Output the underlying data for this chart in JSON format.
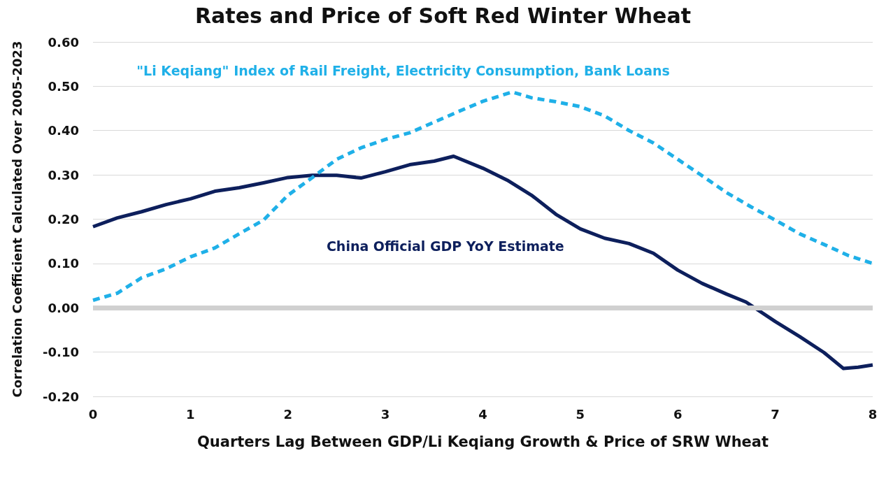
{
  "chart_data": {
    "type": "line",
    "title": "Rates and Price of Soft Red Winter Wheat",
    "xlabel": "Quarters Lag Between GDP/Li Keqiang Growth & Price of SRW Wheat",
    "ylabel": "Correlation Coefficient Calculated Over 2005-2023",
    "series": [
      {
        "name": "China Official GDP YoY Estimate",
        "color": "#0d1f5c",
        "line_style": "solid",
        "x": [
          0,
          0.25,
          0.5,
          0.75,
          1,
          1.25,
          1.5,
          1.75,
          2,
          2.25,
          2.5,
          2.75,
          3,
          3.25,
          3.5,
          3.7,
          4,
          4.25,
          4.5,
          4.75,
          5,
          5.25,
          5.5,
          5.75,
          6,
          6.25,
          6.5,
          6.7,
          7,
          7.25,
          7.5,
          7.7,
          7.85,
          8
        ],
        "values": [
          0.183,
          0.203,
          0.217,
          0.233,
          0.246,
          0.263,
          0.271,
          0.282,
          0.294,
          0.299,
          0.299,
          0.293,
          0.307,
          0.323,
          0.331,
          0.342,
          0.315,
          0.288,
          0.254,
          0.211,
          0.178,
          0.157,
          0.145,
          0.123,
          0.085,
          0.055,
          0.031,
          0.013,
          -0.031,
          -0.065,
          -0.101,
          -0.137,
          -0.134,
          -0.129
        ]
      },
      {
        "name": "\"Li Keqiang\" Index of Rail Freight, Electricity Consumption, Bank Loans",
        "color": "#1fb0e8",
        "line_style": "dashed",
        "x": [
          0,
          0.25,
          0.5,
          0.75,
          1,
          1.25,
          1.5,
          1.75,
          2,
          2.25,
          2.5,
          2.75,
          3,
          3.25,
          3.5,
          3.75,
          4,
          4.3,
          4.5,
          4.75,
          5,
          5.25,
          5.5,
          5.75,
          6,
          6.25,
          6.5,
          6.75,
          7,
          7.25,
          7.5,
          7.75,
          8
        ],
        "values": [
          0.017,
          0.033,
          0.068,
          0.088,
          0.115,
          0.135,
          0.167,
          0.198,
          0.254,
          0.294,
          0.335,
          0.361,
          0.38,
          0.395,
          0.419,
          0.443,
          0.466,
          0.487,
          0.474,
          0.465,
          0.454,
          0.433,
          0.4,
          0.372,
          0.335,
          0.298,
          0.26,
          0.228,
          0.198,
          0.167,
          0.143,
          0.118,
          0.1
        ]
      }
    ],
    "xlim": [
      0,
      8
    ],
    "xticks": [
      0,
      1,
      2,
      3,
      4,
      5,
      6,
      7,
      8
    ],
    "ylim": [
      -0.2,
      0.6
    ],
    "yticks": [
      {
        "value": -0.2,
        "label": "-0.20"
      },
      {
        "value": -0.1,
        "label": "-0.10"
      },
      {
        "value": 0,
        "label": "0.00"
      },
      {
        "value": 0.1,
        "label": "0.10"
      },
      {
        "value": 0.2,
        "label": "0.20"
      },
      {
        "value": 0.3,
        "label": "0.30"
      },
      {
        "value": 0.4,
        "label": "0.40"
      },
      {
        "value": 0.5,
        "label": "0.50"
      },
      {
        "value": 0.6,
        "label": "0.60"
      }
    ],
    "ref_lines": [
      {
        "axis": "y",
        "value": 0,
        "color": "#d0d0d0"
      }
    ],
    "grid": "y",
    "legend": false,
    "marker": "none"
  }
}
